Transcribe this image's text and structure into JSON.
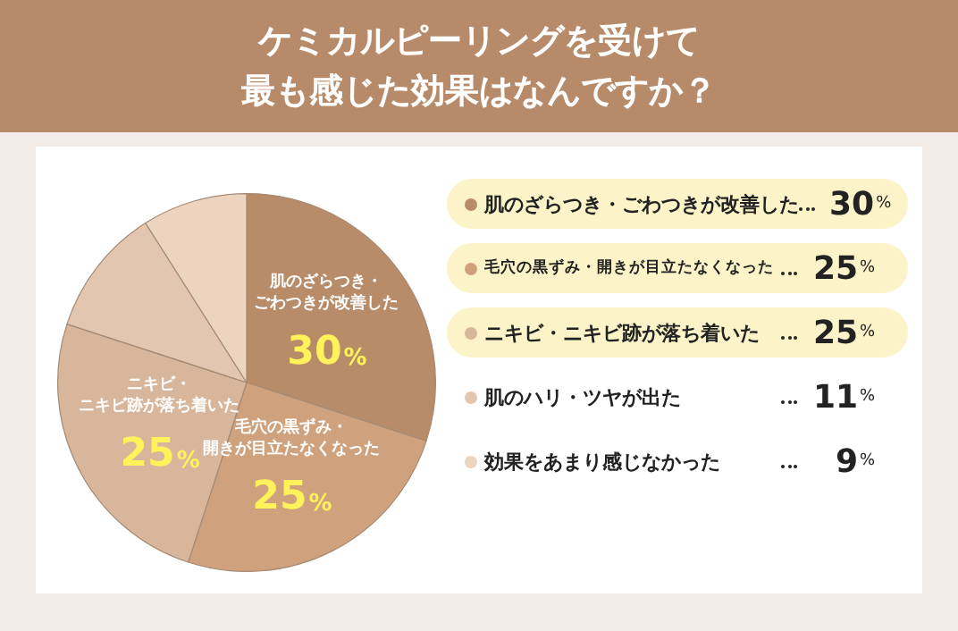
{
  "chart_data": {
    "type": "pie",
    "title": "ケミカルピーリングを受けて",
    "subtitle": "最も感じた効果はなんですか？",
    "categories": [
      "肌のざらつき・ごわつきが改善した",
      "毛穴の黒ずみ・開きが目立たなくなった",
      "ニキビ・ニキビ跡が落ち着いた",
      "肌のハリ・ツヤが出た",
      "効果をあまり感じなかった"
    ],
    "values": [
      30,
      25,
      25,
      11,
      9
    ],
    "value_labels": [
      "30%",
      "25%",
      "25%",
      "11%",
      "9%"
    ],
    "colors": [
      "#b88b69",
      "#cfa17d",
      "#d8b69b",
      "#e2c6b0",
      "#ecd4bf"
    ],
    "legend": "right"
  }
}
